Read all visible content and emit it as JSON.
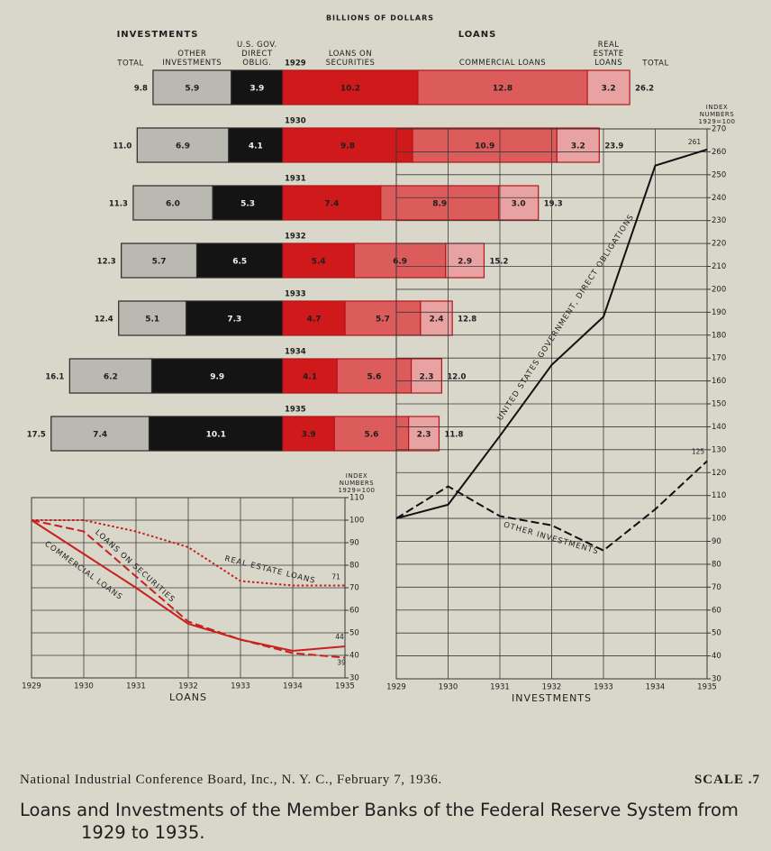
{
  "chart_data": [
    {
      "type": "bar",
      "title": "BILLIONS OF DOLLARS",
      "categories": [
        "1929",
        "1930",
        "1931",
        "1932",
        "1933",
        "1934",
        "1935"
      ],
      "sides": [
        {
          "label": "INVESTMENTS",
          "direction": "left",
          "series": [
            {
              "name": "U.S. GOV. DIRECT OBLIG.",
              "color": "#141414",
              "values": [
                3.9,
                4.1,
                5.3,
                6.5,
                7.3,
                9.9,
                10.1
              ],
              "value_labels": [
                "3.9",
                "4.1",
                "5.3",
                "6.5",
                "7.3",
                "9.9",
                "10.1"
              ]
            },
            {
              "name": "OTHER INVESTMENTS",
              "color": "#bab9b1",
              "values": [
                5.9,
                6.9,
                6.0,
                5.7,
                5.1,
                6.2,
                7.4
              ],
              "value_labels": [
                "5.9",
                "6.9",
                "6.0",
                "5.7",
                "5.1",
                "6.2",
                "7.4"
              ]
            }
          ],
          "total": {
            "name": "TOTAL",
            "values": [
              9.8,
              11.0,
              11.3,
              12.3,
              12.4,
              16.1,
              17.5
            ],
            "value_labels": [
              "9.8",
              "11.0",
              "11.3",
              "12.3",
              "12.4",
              "16.1",
              "17.5"
            ]
          }
        },
        {
          "label": "LOANS",
          "direction": "right",
          "series": [
            {
              "name": "LOANS ON SECURITIES",
              "color": "#d0191b",
              "values": [
                10.2,
                9.8,
                7.4,
                5.4,
                4.7,
                4.1,
                3.9
              ],
              "value_labels": [
                "10.2",
                "9.8",
                "7.4",
                "5.4",
                "4.7",
                "4.1",
                "3.9"
              ]
            },
            {
              "name": "COMMERCIAL LOANS",
              "color": "#dc5b5b",
              "values": [
                12.8,
                10.9,
                8.9,
                6.9,
                5.7,
                5.6,
                5.6
              ],
              "value_labels": [
                "12.8",
                "10.9",
                "8.9",
                "6.9",
                "5.7",
                "5.6",
                "5.6"
              ]
            },
            {
              "name": "REAL ESTATE LOANS",
              "color": "#e9a2a2",
              "values": [
                3.2,
                3.2,
                3.0,
                2.9,
                2.4,
                2.3,
                2.3
              ],
              "value_labels": [
                "3.2",
                "3.2",
                "3.0",
                "2.9",
                "2.4",
                "2.3",
                "2.3"
              ]
            }
          ],
          "total": {
            "name": "TOTAL",
            "values": [
              26.2,
              23.9,
              19.3,
              15.2,
              12.8,
              12.0,
              11.8
            ],
            "value_labels": [
              "26.2",
              "23.9",
              "19.3",
              "15.2",
              "12.8",
              "12.0",
              "11.8"
            ]
          }
        }
      ]
    },
    {
      "type": "line",
      "title": "LOANS",
      "y_label": "INDEX NUMBERS 1929=100",
      "x": [
        1929,
        1930,
        1931,
        1932,
        1933,
        1934,
        1935
      ],
      "xlim": [
        1929,
        1935
      ],
      "xticks": [
        1929,
        1930,
        1931,
        1932,
        1933,
        1934,
        1935
      ],
      "ylim": [
        30,
        110
      ],
      "yticks": [
        30,
        40,
        50,
        60,
        70,
        80,
        90,
        100,
        110
      ],
      "grid": true,
      "series": [
        {
          "name": "LOANS ON SECURITIES",
          "color": "#c8201e",
          "dash": "dashed",
          "values": [
            100,
            95,
            75,
            55,
            47,
            41,
            39
          ]
        },
        {
          "name": "COMMERCIAL LOANS",
          "color": "#c8201e",
          "dash": "solid",
          "values": [
            100,
            85,
            70,
            54,
            47,
            42,
            44
          ]
        },
        {
          "name": "REAL ESTATE LOANS",
          "color": "#c8201e",
          "dash": "dotted",
          "values": [
            100,
            100,
            95,
            88,
            73,
            71,
            71
          ]
        }
      ]
    },
    {
      "type": "line",
      "title": "INVESTMENTS",
      "y_label": "INDEX NUMBERS 1929=100",
      "x": [
        1929,
        1930,
        1931,
        1932,
        1933,
        1934,
        1935
      ],
      "xlim": [
        1929,
        1935
      ],
      "xticks": [
        1929,
        1930,
        1931,
        1932,
        1933,
        1934,
        1935
      ],
      "ylim": [
        30,
        270
      ],
      "yticks": [
        30,
        40,
        50,
        60,
        70,
        80,
        90,
        100,
        110,
        120,
        130,
        140,
        150,
        160,
        170,
        180,
        190,
        200,
        210,
        220,
        230,
        240,
        250,
        260,
        270
      ],
      "grid": true,
      "series": [
        {
          "name": "UNITED STATES GOVERNMENT, DIRECT OBLIGATIONS",
          "color": "#111111",
          "dash": "solid",
          "values": [
            100,
            106,
            136,
            167,
            188,
            254,
            261
          ]
        },
        {
          "name": "OTHER INVESTMENTS",
          "color": "#111111",
          "dash": "dashed",
          "values": [
            100,
            114,
            101,
            97,
            86,
            104,
            125
          ]
        }
      ]
    }
  ],
  "footer": {
    "source": "National Industrial Conference Board, Inc., N. Y. C., February 7, 1936.",
    "scale": "SCALE .7"
  },
  "caption": "Loans and Investments of the Member Banks of the Federal Reserve System from 1929 to 1935."
}
